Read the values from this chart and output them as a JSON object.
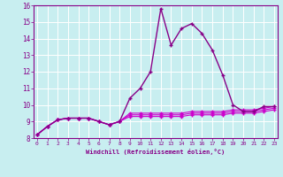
{
  "xlabel": "Windchill (Refroidissement éolien,°C)",
  "background_color": "#c8eef0",
  "grid_color": "#ffffff",
  "line_color_main": "#880088",
  "line_color_flat": "#cc00cc",
  "x_hours": [
    0,
    1,
    2,
    3,
    4,
    5,
    6,
    7,
    8,
    9,
    10,
    11,
    12,
    13,
    14,
    15,
    16,
    17,
    18,
    19,
    20,
    21,
    22,
    23
  ],
  "y_main": [
    8.2,
    8.7,
    9.1,
    9.2,
    9.2,
    9.2,
    9.0,
    8.8,
    9.0,
    10.4,
    11.0,
    12.0,
    15.8,
    13.6,
    14.6,
    14.9,
    14.3,
    13.3,
    11.8,
    10.0,
    9.6,
    9.6,
    9.9,
    9.9
  ],
  "y_flat1": [
    8.2,
    8.7,
    9.1,
    9.2,
    9.2,
    9.2,
    9.0,
    8.8,
    9.0,
    9.5,
    9.5,
    9.5,
    9.5,
    9.5,
    9.5,
    9.6,
    9.6,
    9.6,
    9.6,
    9.7,
    9.7,
    9.7,
    9.8,
    9.9
  ],
  "y_flat2": [
    8.2,
    8.7,
    9.1,
    9.2,
    9.2,
    9.2,
    9.0,
    8.8,
    9.0,
    9.4,
    9.4,
    9.4,
    9.4,
    9.4,
    9.4,
    9.5,
    9.5,
    9.5,
    9.5,
    9.6,
    9.6,
    9.6,
    9.7,
    9.8
  ],
  "y_flat3": [
    8.2,
    8.7,
    9.1,
    9.2,
    9.2,
    9.2,
    9.0,
    8.8,
    9.0,
    9.3,
    9.3,
    9.3,
    9.3,
    9.3,
    9.3,
    9.4,
    9.4,
    9.4,
    9.4,
    9.5,
    9.5,
    9.5,
    9.6,
    9.7
  ],
  "ylim": [
    8.0,
    16.0
  ],
  "xlim": [
    -0.3,
    23.3
  ],
  "yticks": [
    8,
    9,
    10,
    11,
    12,
    13,
    14,
    15,
    16
  ],
  "xtick_labels": [
    "0",
    "1",
    "2",
    "3",
    "4",
    "5",
    "6",
    "7",
    "8",
    "9",
    "10",
    "11",
    "12",
    "13",
    "14",
    "15",
    "16",
    "17",
    "18",
    "19",
    "20",
    "21",
    "22",
    "23"
  ]
}
